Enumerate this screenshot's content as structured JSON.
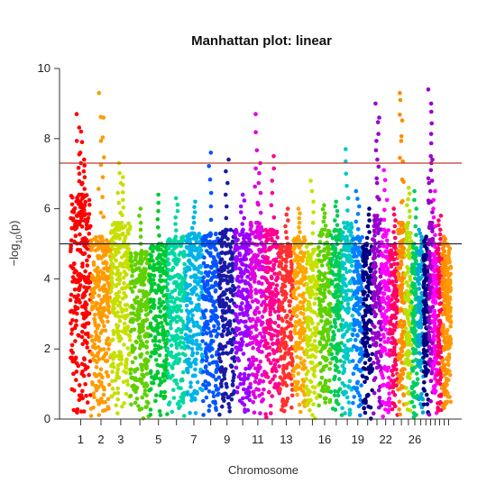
{
  "chart_data": {
    "type": "scatter",
    "title": "Manhattan plot: linear",
    "xlabel": "Chromosome",
    "ylabel": "−log10(p)",
    "ylabel_main": "−log",
    "ylabel_sub": "10",
    "ylabel_tail": "(p)",
    "ylim": [
      0,
      10
    ],
    "yticks": [
      "0",
      "2",
      "4",
      "6",
      "8",
      "10"
    ],
    "xtick_labels": [
      "1",
      "2",
      "3",
      "5",
      "7",
      "9",
      "11",
      "13",
      "16",
      "19",
      "22",
      "26"
    ],
    "thresholds": [
      {
        "value": 7.3,
        "color": "#c0392b"
      },
      {
        "value": 5.0,
        "color": "#1f2a55"
      }
    ],
    "chromosomes": [
      {
        "id": "1",
        "color": "#ff0000",
        "base_max": 6.4,
        "peaks": [
          8.7,
          8.2,
          7.4
        ]
      },
      {
        "id": "2",
        "color": "#ff9a00",
        "base_max": 5.2,
        "peaks": [
          9.3,
          8.6
        ]
      },
      {
        "id": "3",
        "color": "#c7df00",
        "base_max": 5.6,
        "peaks": [
          7.3,
          6.9
        ]
      },
      {
        "id": "4",
        "color": "#62cf00",
        "base_max": 4.8,
        "peaks": [
          6.0
        ]
      },
      {
        "id": "5",
        "color": "#00c832",
        "base_max": 5.0,
        "peaks": [
          6.4
        ]
      },
      {
        "id": "6",
        "color": "#00d8a0",
        "base_max": 5.2,
        "peaks": [
          6.3
        ]
      },
      {
        "id": "7",
        "color": "#00b4e6",
        "base_max": 5.3,
        "peaks": [
          6.2
        ]
      },
      {
        "id": "8",
        "color": "#0055ff",
        "base_max": 5.3,
        "peaks": [
          7.6
        ]
      },
      {
        "id": "9",
        "color": "#1a1aa8",
        "base_max": 5.4,
        "peaks": [
          7.4
        ]
      },
      {
        "id": "10",
        "color": "#9a00ff",
        "base_max": 5.4,
        "peaks": [
          6.4
        ]
      },
      {
        "id": "11",
        "color": "#e000e0",
        "base_max": 5.6,
        "peaks": [
          8.7,
          7.3
        ]
      },
      {
        "id": "12",
        "color": "#ff0090",
        "base_max": 5.4,
        "peaks": [
          7.5
        ]
      },
      {
        "id": "13",
        "color": "#ff3030",
        "base_max": 5.0,
        "peaks": [
          6.0
        ]
      },
      {
        "id": "14",
        "color": "#ffa500",
        "base_max": 5.2,
        "peaks": [
          6.0
        ]
      },
      {
        "id": "15",
        "color": "#c8e000",
        "base_max": 5.0,
        "peaks": [
          6.8
        ]
      },
      {
        "id": "16",
        "color": "#5fd000",
        "base_max": 5.4,
        "peaks": [
          6.1
        ]
      },
      {
        "id": "17",
        "color": "#00cc55",
        "base_max": 5.4,
        "peaks": [
          6.2
        ]
      },
      {
        "id": "18",
        "color": "#00c8c8",
        "base_max": 5.6,
        "peaks": [
          7.7
        ]
      },
      {
        "id": "19",
        "color": "#0080ff",
        "base_max": 5.2,
        "peaks": [
          6.5
        ]
      },
      {
        "id": "20",
        "color": "#000080",
        "base_max": 5.0,
        "peaks": [
          6.0
        ]
      },
      {
        "id": "21",
        "color": "#9900cc",
        "base_max": 5.8,
        "peaks": [
          9.0,
          8.6
        ]
      },
      {
        "id": "22",
        "color": "#ff00ff",
        "base_max": 5.4,
        "peaks": [
          7.1
        ]
      },
      {
        "id": "23",
        "color": "#ff0066",
        "base_max": 5.0,
        "peaks": [
          6.0
        ]
      },
      {
        "id": "24",
        "color": "#ff8c00",
        "base_max": 5.6,
        "peaks": [
          9.3,
          9.1
        ]
      },
      {
        "id": "25",
        "color": "#b8e000",
        "base_max": 5.6,
        "peaks": [
          6.6
        ]
      },
      {
        "id": "26",
        "color": "#00cc66",
        "base_max": 5.0,
        "peaks": [
          6.5
        ]
      },
      {
        "id": "27",
        "color": "#00a8d8",
        "base_max": 4.8,
        "peaks": [
          5.4
        ]
      },
      {
        "id": "28",
        "color": "#000080",
        "base_max": 4.8,
        "peaks": [
          5.2
        ]
      },
      {
        "id": "29",
        "color": "#9900cc",
        "base_max": 5.6,
        "peaks": [
          9.4,
          9.0,
          7.4
        ]
      },
      {
        "id": "30",
        "color": "#ff00ff",
        "base_max": 5.0,
        "peaks": [
          6.5
        ]
      },
      {
        "id": "31",
        "color": "#ff0066",
        "base_max": 5.0,
        "peaks": [
          5.8
        ]
      },
      {
        "id": "32",
        "color": "#ff8c00",
        "base_max": 4.8,
        "peaks": [
          5.2
        ]
      },
      {
        "id": "33",
        "color": "#ff9a00",
        "base_max": 4.6,
        "peaks": [
          5.0
        ]
      }
    ],
    "grid": false,
    "legend": "none"
  }
}
